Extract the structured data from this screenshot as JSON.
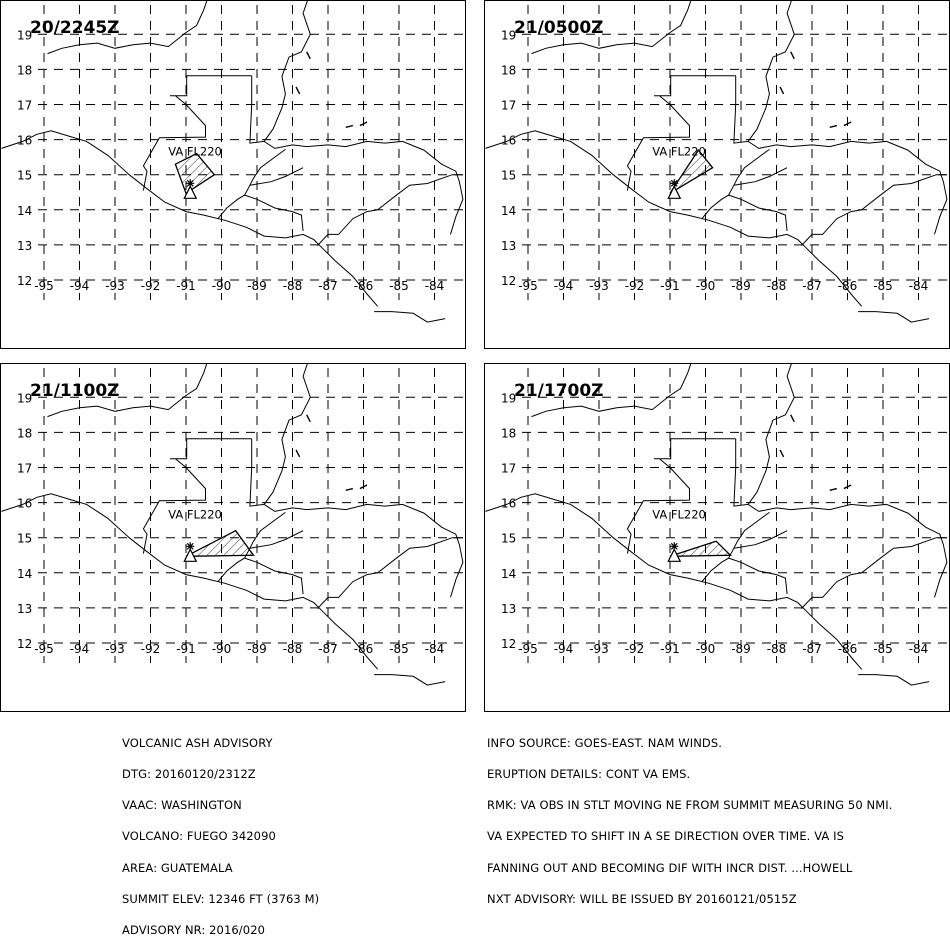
{
  "panels": [
    {
      "time_label": "20/2245Z",
      "ash_label": "VA FL220",
      "plume": [
        [
          -91.0,
          14.47
        ],
        [
          -91.3,
          15.3
        ],
        [
          -90.7,
          15.6
        ],
        [
          -90.2,
          15.0
        ]
      ]
    },
    {
      "time_label": "21/0500Z",
      "ash_label": "VA FL220",
      "plume": [
        [
          -91.0,
          14.47
        ],
        [
          -90.2,
          15.7
        ],
        [
          -89.8,
          15.2
        ]
      ]
    },
    {
      "time_label": "21/1100Z",
      "ash_label": "VA FL220",
      "plume": [
        [
          -91.0,
          14.47
        ],
        [
          -89.6,
          15.2
        ],
        [
          -89.1,
          14.5
        ]
      ]
    },
    {
      "time_label": "21/1700Z",
      "ash_label": "VA FL220",
      "plume": [
        [
          -91.0,
          14.47
        ],
        [
          -89.7,
          14.9
        ],
        [
          -89.3,
          14.5
        ]
      ]
    }
  ],
  "volcano": {
    "name": "FUEGO",
    "lon": -90.88,
    "lat": 14.47
  },
  "lat_ticks": [
    "12",
    "13",
    "14",
    "15",
    "16",
    "17",
    "18",
    "19"
  ],
  "lon_ticks": [
    "-95",
    "-94",
    "-93",
    "-92",
    "-91",
    "-90",
    "-89",
    "-88",
    "-87",
    "-86",
    "-85",
    "-84"
  ],
  "advisory_left": [
    "VOLCANIC ASH ADVISORY",
    "DTG: 20160120/2312Z",
    "VAAC: WASHINGTON",
    "VOLCANO: FUEGO 342090",
    "AREA: GUATEMALA",
    "SUMMIT ELEV: 12346 FT (3763 M)",
    "ADVISORY NR: 2016/020"
  ],
  "advisory_right": [
    "INFO SOURCE: GOES-EAST. NAM WINDS.",
    "ERUPTION DETAILS: CONT VA EMS.",
    "RMK: VA OBS IN STLT MOVING NE FROM SUMMIT MEASURING 50 NMI.",
    "VA EXPECTED TO SHIFT IN A SE DIRECTION OVER TIME. VA IS",
    "FANNING OUT AND BECOMING DIF WITH INCR DIST. ...HOWELL",
    "NXT ADVISORY: WILL BE ISSUED BY 20160121/0515Z"
  ]
}
